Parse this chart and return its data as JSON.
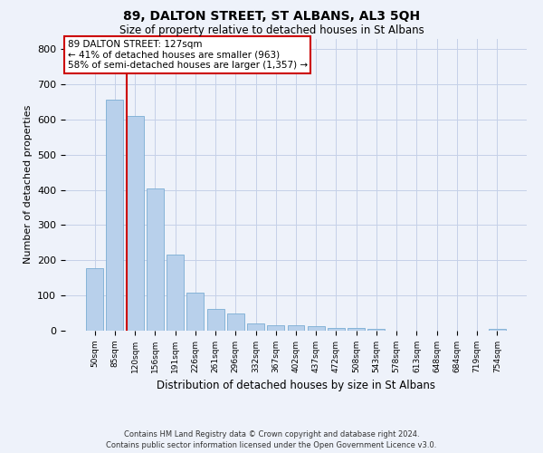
{
  "title": "89, DALTON STREET, ST ALBANS, AL3 5QH",
  "subtitle": "Size of property relative to detached houses in St Albans",
  "xlabel": "Distribution of detached houses by size in St Albans",
  "ylabel": "Number of detached properties",
  "bar_color": "#b8d0eb",
  "bar_edge_color": "#7aadd4",
  "background_color": "#eef2fa",
  "grid_color": "#c5d0e8",
  "annotation_box_color": "#ffffff",
  "annotation_edge_color": "#cc0000",
  "vline_color": "#cc0000",
  "categories": [
    "50sqm",
    "85sqm",
    "120sqm",
    "156sqm",
    "191sqm",
    "226sqm",
    "261sqm",
    "296sqm",
    "332sqm",
    "367sqm",
    "402sqm",
    "437sqm",
    "472sqm",
    "508sqm",
    "543sqm",
    "578sqm",
    "613sqm",
    "648sqm",
    "684sqm",
    "719sqm",
    "754sqm"
  ],
  "values": [
    178,
    655,
    610,
    403,
    215,
    109,
    63,
    49,
    21,
    16,
    15,
    14,
    8,
    7,
    6,
    0,
    0,
    0,
    0,
    0,
    5
  ],
  "vline_position": 1.58,
  "annotation_text": "89 DALTON STREET: 127sqm\n← 41% of detached houses are smaller (963)\n58% of semi-detached houses are larger (1,357) →",
  "footer": "Contains HM Land Registry data © Crown copyright and database right 2024.\nContains public sector information licensed under the Open Government Licence v3.0.",
  "ylim": [
    0,
    830
  ],
  "yticks": [
    0,
    100,
    200,
    300,
    400,
    500,
    600,
    700,
    800
  ]
}
